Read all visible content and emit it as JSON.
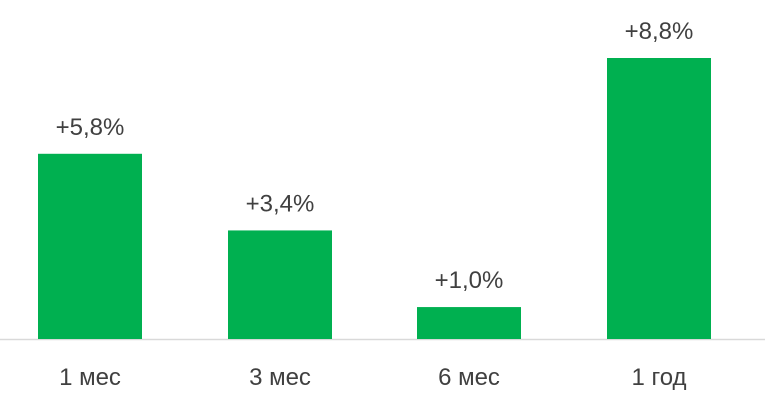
{
  "chart_data": {
    "type": "bar",
    "categories": [
      "1 мес",
      "3 мес",
      "6 мес",
      "1 год"
    ],
    "values": [
      5.8,
      3.4,
      1.0,
      8.8
    ],
    "data_labels": [
      "+5,8%",
      "+3,4%",
      "+1,0%",
      "+8,8%"
    ],
    "title": "",
    "xlabel": "",
    "ylabel": "",
    "ylim": [
      0,
      8.8
    ],
    "grid": false,
    "colors": {
      "bar": "#00b050",
      "axis": "#d9d9d9",
      "text": "#404040"
    }
  }
}
